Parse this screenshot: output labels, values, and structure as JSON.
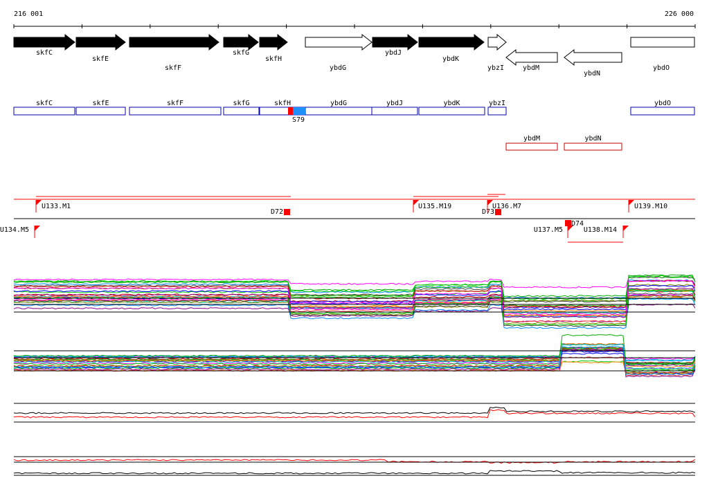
{
  "ruler": {
    "start": "216 001",
    "end": "226 000"
  },
  "genes": [
    "skfC",
    "skfE",
    "skfF",
    "skfG",
    "skfH",
    "ybdG",
    "ybdJ",
    "ybdK",
    "ybzI",
    "ybdM",
    "ybdN",
    "ybdO"
  ],
  "features": [
    "skfC",
    "skfE",
    "skfF",
    "skfG",
    "skfH",
    "ybdG",
    "ybdJ",
    "ybdK",
    "ybzI",
    "ybdO"
  ],
  "site": "S79",
  "reverse_features": [
    "ybdM",
    "ybdN"
  ],
  "markers": [
    "U133.M1",
    "D72",
    "U135.M19",
    "D73",
    "U136.M7",
    "U139.M10",
    "U134.M5",
    "U137.M5",
    "D74",
    "U138.M14"
  ]
}
